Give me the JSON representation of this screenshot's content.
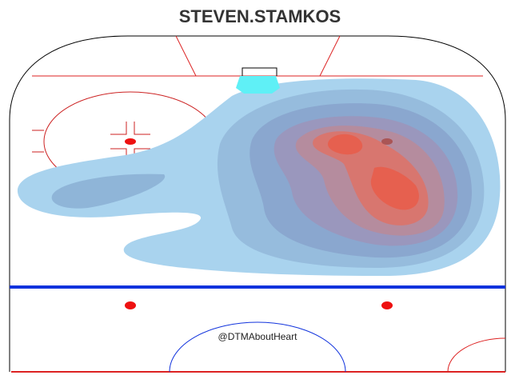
{
  "chart_data": {
    "type": "density",
    "title": "STEVEN.STAMKOS",
    "annotation": "@DTMAboutHeart"
  }
}
